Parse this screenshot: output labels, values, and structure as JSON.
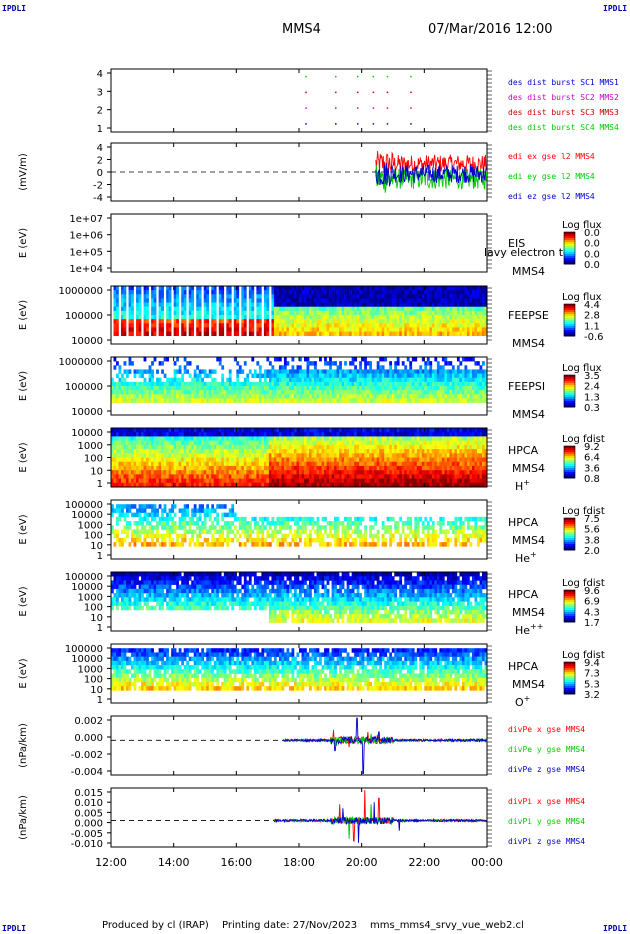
{
  "header": {
    "title": "MMS4",
    "date": "07/Mar/2016 12:00",
    "corner_label": "IPDLI"
  },
  "footer": {
    "produced_by": "Produced by cl (IRAP)",
    "printing_date": "Printing date: 27/Nov/2023",
    "script_name": "mms_mms4_srvy_vue_web2.cl"
  },
  "colors": {
    "red": "#ff0000",
    "green": "#00cc00",
    "blue": "#0000cc",
    "magenta": "#cc00cc",
    "darkred": "#cc0000"
  },
  "chart_data": {
    "type": "multi-panel time series / spectrogram",
    "x_tick_labels": [
      "12:00",
      "14:00",
      "16:00",
      "18:00",
      "20:00",
      "22:00",
      "00:00"
    ],
    "x_range_hours": [
      12,
      24
    ],
    "panels": [
      {
        "id": "des-dist-burst",
        "type": "scatter",
        "ylabel": "",
        "y_tick_labels": [
          "4",
          "3",
          "2",
          "1"
        ],
        "ylim": [
          0.5,
          4.5
        ],
        "legend": [
          {
            "text": "des dist burst SC1 MMS1",
            "color": "#0000cc"
          },
          {
            "text": "des dist burst SC2 MMS2",
            "color": "#cc00cc"
          },
          {
            "text": "des dist burst SC3 MMS3",
            "color": "#cc0000"
          },
          {
            "text": "des dist burst SC4 MMS4",
            "color": "#00cc00"
          }
        ],
        "x_times": [
          18.2,
          19.15,
          19.85,
          20.35,
          20.8,
          21.55
        ],
        "series": [
          {
            "name": "des dist burst SC1 MMS1",
            "y": 1,
            "color": "#0000cc"
          },
          {
            "name": "des dist burst SC2 MMS2",
            "y": 2,
            "color": "#cc00cc"
          },
          {
            "name": "des dist burst SC3 MMS3",
            "y": 3,
            "color": "#cc0000"
          },
          {
            "name": "des dist burst SC4 MMS4",
            "y": 4,
            "color": "#00cc00"
          }
        ]
      },
      {
        "id": "edi-e",
        "type": "line",
        "ylabel": "(mV/m)",
        "y_tick_labels": [
          "4",
          "2",
          "0",
          "-2",
          "-4"
        ],
        "ylim": [
          -5,
          5
        ],
        "zero_line": true,
        "legend": [
          {
            "text": "edi ex gse l2 MMS4",
            "color": "#ff0000"
          },
          {
            "text": "edi ey gse l2 MMS4",
            "color": "#00cc00"
          },
          {
            "text": "edi ez gse l2 MMS4",
            "color": "#0000cc"
          }
        ],
        "series": [
          {
            "name": "edi ex gse l2 MMS4",
            "color": "#ff0000",
            "t_start": 20.45,
            "t_end": 24,
            "mean": 1.4,
            "amplitude": 1.6
          },
          {
            "name": "edi ey gse l2 MMS4",
            "color": "#00cc00",
            "t_start": 20.45,
            "t_end": 24,
            "mean": -1.2,
            "amplitude": 1.8
          },
          {
            "name": "edi ez gse l2 MMS4",
            "color": "#0000cc",
            "t_start": 20.45,
            "t_end": 24,
            "mean": -0.3,
            "amplitude": 1.6
          }
        ]
      },
      {
        "id": "eis",
        "type": "heatmap",
        "ylabel": "E (eV)",
        "y_tick_labels": [
          "1e+07",
          "1e+06",
          "1e+05",
          "1e+04"
        ],
        "labels": [
          "EIS",
          "MMS4"
        ],
        "overlay_text": "lavy electron to",
        "colorbar": {
          "title": "Log flux",
          "ticks": [
            "0.0",
            "0.0",
            "0.0",
            "0.0"
          ]
        },
        "empty": true
      },
      {
        "id": "feeps-e",
        "type": "heatmap",
        "ylabel": "E (eV)",
        "y_tick_labels": [
          "1000000",
          "100000",
          "10000"
        ],
        "labels": [
          "FEEPSE",
          "MMS4"
        ],
        "colorbar": {
          "title": "Log flux",
          "ticks": [
            "4.4",
            "2.8",
            "1.1",
            "-0.6"
          ]
        }
      },
      {
        "id": "feeps-i",
        "type": "heatmap",
        "ylabel": "E (eV)",
        "y_tick_labels": [
          "1000000",
          "100000",
          "10000"
        ],
        "labels": [
          "FEEPSI",
          "MMS4"
        ],
        "colorbar": {
          "title": "Log flux",
          "ticks": [
            "3.5",
            "2.4",
            "1.3",
            "0.3"
          ]
        }
      },
      {
        "id": "hpca-h",
        "type": "heatmap",
        "ylabel": "E (eV)",
        "y_tick_labels": [
          "10000",
          "1000",
          "100",
          "10",
          "1"
        ],
        "labels": [
          "HPCA",
          "MMS4"
        ],
        "species": {
          "base": "H",
          "sup": "+"
        },
        "colorbar": {
          "title": "Log fdist",
          "ticks": [
            "9.2",
            "6.4",
            "3.6",
            "0.8"
          ]
        }
      },
      {
        "id": "hpca-he1",
        "type": "heatmap",
        "ylabel": "E (eV)",
        "y_tick_labels": [
          "100000",
          "10000",
          "1000",
          "100",
          "10",
          "1"
        ],
        "labels": [
          "HPCA",
          "MMS4"
        ],
        "species": {
          "base": "He",
          "sup": "+"
        },
        "colorbar": {
          "title": "Log fdist",
          "ticks": [
            "7.5",
            "5.6",
            "3.8",
            "2.0"
          ]
        }
      },
      {
        "id": "hpca-he2",
        "type": "heatmap",
        "ylabel": "E (eV)",
        "y_tick_labels": [
          "100000",
          "10000",
          "1000",
          "100",
          "10",
          "1"
        ],
        "labels": [
          "HPCA",
          "MMS4"
        ],
        "species": {
          "base": "He",
          "sup": "++"
        },
        "colorbar": {
          "title": "Log fdist",
          "ticks": [
            "9.6",
            "6.9",
            "4.3",
            "1.7"
          ]
        }
      },
      {
        "id": "hpca-o",
        "type": "heatmap",
        "ylabel": "E (eV)",
        "y_tick_labels": [
          "100000",
          "10000",
          "1000",
          "100",
          "10",
          "1"
        ],
        "labels": [
          "HPCA",
          "MMS4"
        ],
        "species": {
          "base": "O",
          "sup": "+"
        },
        "colorbar": {
          "title": "Log fdist",
          "ticks": [
            "9.4",
            "7.3",
            "5.3",
            "3.2"
          ]
        }
      },
      {
        "id": "divpe",
        "type": "line",
        "ylabel": "(nPa/km)",
        "y_tick_labels": [
          "0.002",
          "0.000",
          "-0.002",
          "-0.004"
        ],
        "ylim": [
          -0.005,
          0.0035
        ],
        "zero_line": true,
        "legend": [
          {
            "text": "divPe x gse MMS4",
            "color": "#ff0000"
          },
          {
            "text": "divPe y gse MMS4",
            "color": "#00cc00"
          },
          {
            "text": "divPe z gse MMS4",
            "color": "#0000cc"
          }
        ],
        "series": [
          {
            "name": "divPe x gse MMS4",
            "color": "#ff0000",
            "t_start": 17.5,
            "t_end": 24,
            "spike_times": [
              19.1,
              19.6,
              20.2,
              20.5
            ],
            "spike_values": [
              0.0015,
              -0.001,
              0.0012,
              0.0008
            ]
          },
          {
            "name": "divPe y gse MMS4",
            "color": "#00cc00",
            "t_start": 17.5,
            "t_end": 24,
            "spike_times": [
              19.2,
              20.3
            ],
            "spike_values": [
              -0.0008,
              0.0009
            ]
          },
          {
            "name": "divPe z gse MMS4",
            "color": "#0000cc",
            "t_start": 17.5,
            "t_end": 24,
            "spike_times": [
              19.15,
              19.85,
              20.05,
              20.55
            ],
            "spike_values": [
              -0.0015,
              0.0032,
              -0.0048,
              0.0012
            ]
          }
        ]
      },
      {
        "id": "divpi",
        "type": "line",
        "ylabel": "(nPa/km)",
        "y_tick_labels": [
          "0.015",
          "0.010",
          "0.005",
          "0.000",
          "-0.005",
          "-0.010"
        ],
        "ylim": [
          -0.013,
          0.016
        ],
        "zero_line": true,
        "legend": [
          {
            "text": "divPi x gse MMS4",
            "color": "#ff0000"
          },
          {
            "text": "divPi y gse MMS4",
            "color": "#00cc00"
          },
          {
            "text": "divPi z gse MMS4",
            "color": "#0000cc"
          }
        ],
        "series": [
          {
            "name": "divPi x gse MMS4",
            "color": "#ff0000",
            "t_start": 17.2,
            "t_end": 24,
            "spike_times": [
              19.3,
              19.75,
              20.1,
              20.55
            ],
            "spike_values": [
              0.008,
              -0.01,
              0.015,
              0.011
            ]
          },
          {
            "name": "divPi y gse MMS4",
            "color": "#00cc00",
            "t_start": 17.2,
            "t_end": 24,
            "spike_times": [
              19.6,
              20.3
            ],
            "spike_values": [
              -0.009,
              0.008
            ]
          },
          {
            "name": "divPi z gse MMS4",
            "color": "#0000cc",
            "t_start": 17.2,
            "t_end": 24,
            "spike_times": [
              19.4,
              19.9,
              20.4,
              21.2
            ],
            "spike_values": [
              0.006,
              -0.011,
              0.009,
              -0.005
            ]
          }
        ]
      }
    ]
  }
}
